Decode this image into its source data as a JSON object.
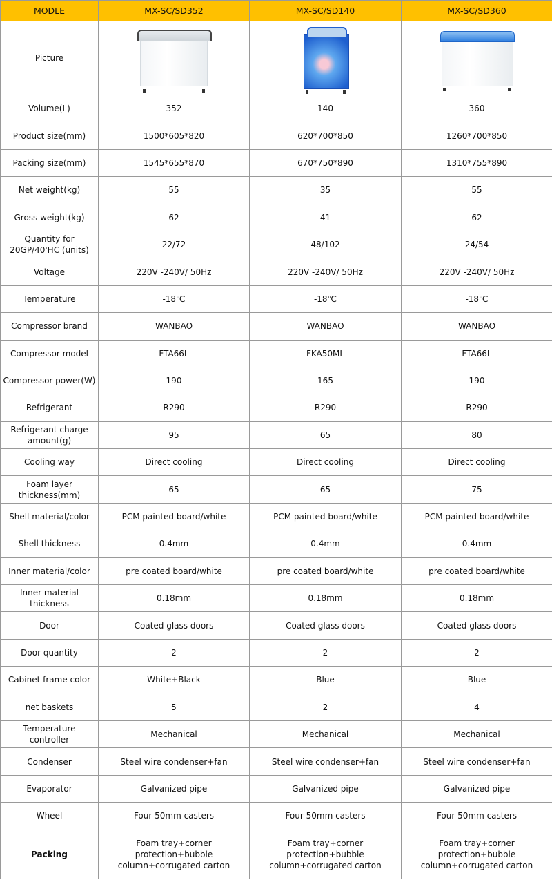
{
  "header": {
    "label": "MODLE",
    "models": [
      "MX-SC/SD352",
      "MX-SC/SD140",
      "MX-SC/SD360"
    ]
  },
  "picture_label": "Picture",
  "rows": [
    {
      "label": "Volume(L)",
      "values": [
        "352",
        "140",
        "360"
      ]
    },
    {
      "label": "Product size(mm)",
      "values": [
        "1500*605*820",
        "620*700*850",
        "1260*700*850"
      ]
    },
    {
      "label": "Packing size(mm)",
      "values": [
        "1545*655*870",
        "670*750*890",
        "1310*755*890"
      ]
    },
    {
      "label": "Net weight(kg)",
      "values": [
        "55",
        "35",
        "55"
      ]
    },
    {
      "label": "Gross weight(kg)",
      "values": [
        "62",
        "41",
        "62"
      ]
    },
    {
      "label": "Quantity for 20GP/40'HC  (units)",
      "values": [
        "22/72",
        "48/102",
        "24/54"
      ]
    },
    {
      "label": "Voltage",
      "values": [
        "220V -240V/ 50Hz",
        "220V -240V/ 50Hz",
        "220V -240V/ 50Hz"
      ]
    },
    {
      "label": "Temperature",
      "values": [
        "-18℃",
        "-18℃",
        "-18℃"
      ]
    },
    {
      "label": "Compressor brand",
      "values": [
        "WANBAO",
        "WANBAO",
        "WANBAO"
      ]
    },
    {
      "label": "Compressor model",
      "values": [
        "FTA66L",
        "FKA50ML",
        "FTA66L"
      ]
    },
    {
      "label": "Compressor power(W)",
      "values": [
        "190",
        "165",
        "190"
      ]
    },
    {
      "label": "Refrigerant",
      "values": [
        "R290",
        "R290",
        "R290"
      ]
    },
    {
      "label": "Refrigerant charge amount(g)",
      "values": [
        "95",
        "65",
        "80"
      ]
    },
    {
      "label": "Cooling way",
      "values": [
        "Direct cooling",
        "Direct cooling",
        "Direct cooling"
      ]
    },
    {
      "label": "Foam layer thickness(mm)",
      "values": [
        "65",
        "65",
        "75"
      ]
    },
    {
      "label": "Shell material/color",
      "values": [
        "PCM painted board/white",
        "PCM painted board/white",
        "PCM painted board/white"
      ]
    },
    {
      "label": "Shell thickness",
      "values": [
        "0.4mm",
        "0.4mm",
        "0.4mm"
      ]
    },
    {
      "label": "Inner material/color",
      "values": [
        "pre coated board/white",
        "pre coated board/white",
        "pre coated board/white"
      ]
    },
    {
      "label": "Inner material thickness",
      "values": [
        "0.18mm",
        "0.18mm",
        "0.18mm"
      ]
    },
    {
      "label": "Door",
      "values": [
        "Coated glass doors",
        "Coated glass doors",
        "Coated glass doors"
      ]
    },
    {
      "label": "Door quantity",
      "values": [
        "2",
        "2",
        "2"
      ]
    },
    {
      "label": "Cabinet frame color",
      "values": [
        "White+Black",
        "Blue",
        "Blue"
      ]
    },
    {
      "label": "net baskets",
      "values": [
        "5",
        "2",
        "4"
      ]
    },
    {
      "label": "Temperature controller",
      "values": [
        "Mechanical",
        "Mechanical",
        "Mechanical"
      ]
    },
    {
      "label": "Condenser",
      "values": [
        "Steel wire condenser+fan",
        "Steel wire condenser+fan",
        "Steel wire condenser+fan"
      ]
    },
    {
      "label": "Evaporator",
      "values": [
        "Galvanized pipe",
        "Galvanized pipe",
        "Galvanized pipe"
      ]
    },
    {
      "label": "Wheel",
      "values": [
        "Four 50mm casters",
        "Four 50mm casters",
        "Four 50mm casters"
      ]
    },
    {
      "label": "Packing",
      "values": [
        "Foam tray+corner protection+bubble column+corrugated carton",
        "Foam tray+corner protection+bubble column+corrugated carton",
        "Foam tray+corner protection+bubble column+corrugated carton"
      ]
    }
  ]
}
